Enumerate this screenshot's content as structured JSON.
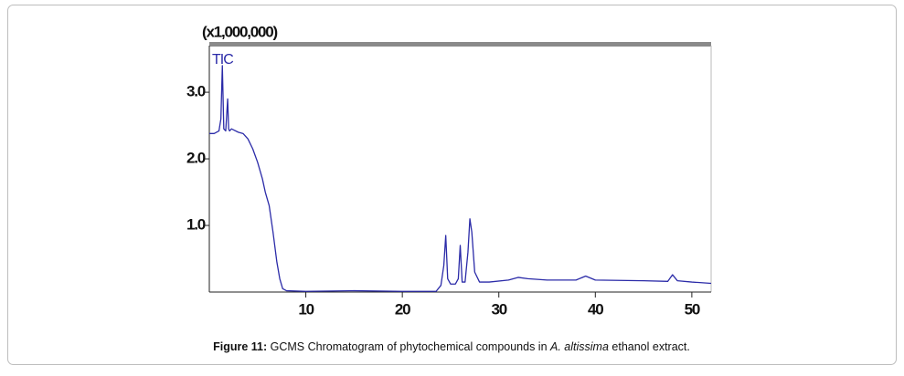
{
  "chart_data": {
    "type": "line",
    "multiplier_label": "(x1,000,000)",
    "xlim": [
      0,
      52
    ],
    "xticks": [
      10,
      20,
      30,
      40,
      50
    ],
    "ylim": [
      0,
      3.7
    ],
    "yticks": [
      {
        "value": 1,
        "label": "1.0"
      },
      {
        "value": 2,
        "label": "2.0"
      },
      {
        "value": 3,
        "label": "3.0"
      }
    ],
    "x": [
      0,
      0.5,
      1.0,
      1.2,
      1.35,
      1.5,
      1.7,
      1.9,
      2.0,
      2.1,
      2.3,
      3,
      3.5,
      4,
      4.5,
      5,
      5.5,
      5.8,
      6.2,
      6.6,
      7,
      7.3,
      7.6,
      8,
      10,
      15,
      20,
      23.5,
      24,
      24.3,
      24.5,
      24.7,
      25,
      25.5,
      25.8,
      26,
      26.2,
      26.5,
      26.8,
      27,
      27.2,
      27.5,
      28,
      29,
      31,
      32,
      33,
      35,
      38,
      39,
      40,
      45,
      47.5,
      48,
      48.5,
      50,
      52
    ],
    "series": [
      {
        "name": "TIC",
        "color": "#2b2ba8",
        "values": [
          2.38,
          2.38,
          2.42,
          2.6,
          3.4,
          2.45,
          2.42,
          2.9,
          2.45,
          2.42,
          2.45,
          2.4,
          2.38,
          2.3,
          2.15,
          1.95,
          1.7,
          1.5,
          1.3,
          0.9,
          0.45,
          0.2,
          0.05,
          0.02,
          0.01,
          0.02,
          0.01,
          0.01,
          0.1,
          0.4,
          0.85,
          0.2,
          0.12,
          0.12,
          0.2,
          0.7,
          0.15,
          0.15,
          0.6,
          1.1,
          0.9,
          0.3,
          0.15,
          0.15,
          0.18,
          0.22,
          0.2,
          0.18,
          0.18,
          0.24,
          0.18,
          0.17,
          0.16,
          0.26,
          0.17,
          0.15,
          0.13
        ]
      }
    ],
    "caption": {
      "label": "Figure 11:",
      "before": " GCMS Chromatogram of phytochemical compounds in ",
      "species": "A. altissima",
      "after": " ethanol extract."
    }
  }
}
